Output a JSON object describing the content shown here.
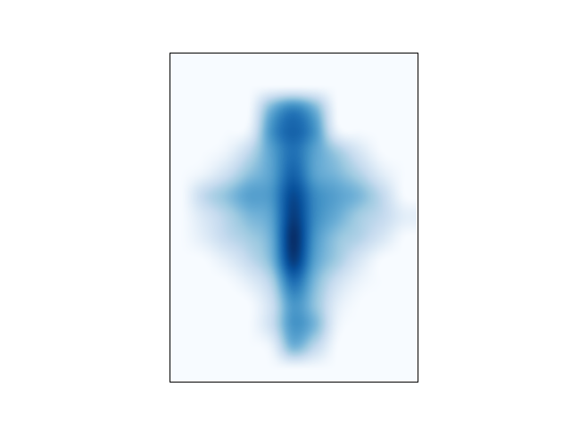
{
  "chart_data": {
    "type": "heatmap",
    "title": "",
    "xlabel": "",
    "ylabel": "",
    "axis_ticks_visible": false,
    "grid": false,
    "legend": "none",
    "colormap": "Blues",
    "colormap_stops": [
      "#f7fbff",
      "#deebf7",
      "#c6dbef",
      "#9ecae1",
      "#6baed6",
      "#4292c6",
      "#2171b5",
      "#08519c",
      "#08306b"
    ],
    "interpolation": "bicubic",
    "grid_shape": [
      15,
      11
    ],
    "values": [
      [
        0.0,
        0.0,
        0.0,
        0.0,
        0.0,
        0.0,
        0.0,
        0.0,
        0.0,
        0.0,
        0.0
      ],
      [
        0.0,
        0.0,
        0.0,
        0.0,
        0.0,
        0.0,
        0.0,
        0.0,
        0.0,
        0.0,
        0.0
      ],
      [
        0.0,
        0.0,
        0.0,
        0.0,
        0.45,
        0.65,
        0.45,
        0.0,
        0.0,
        0.0,
        0.0
      ],
      [
        0.0,
        0.0,
        0.0,
        0.05,
        0.6,
        0.8,
        0.6,
        0.05,
        0.0,
        0.0,
        0.0
      ],
      [
        0.0,
        0.0,
        0.05,
        0.25,
        0.55,
        0.75,
        0.55,
        0.35,
        0.15,
        0.0,
        0.0
      ],
      [
        0.0,
        0.05,
        0.2,
        0.4,
        0.55,
        0.8,
        0.55,
        0.45,
        0.3,
        0.1,
        0.0
      ],
      [
        0.0,
        0.25,
        0.4,
        0.55,
        0.6,
        0.9,
        0.65,
        0.55,
        0.45,
        0.25,
        0.0
      ],
      [
        0.0,
        0.15,
        0.3,
        0.45,
        0.55,
        0.95,
        0.65,
        0.5,
        0.35,
        0.25,
        0.1
      ],
      [
        0.0,
        0.1,
        0.25,
        0.35,
        0.5,
        1.0,
        0.6,
        0.4,
        0.3,
        0.15,
        0.0
      ],
      [
        0.0,
        0.0,
        0.1,
        0.25,
        0.45,
        0.95,
        0.55,
        0.35,
        0.15,
        0.0,
        0.0
      ],
      [
        0.0,
        0.0,
        0.0,
        0.1,
        0.3,
        0.75,
        0.45,
        0.2,
        0.05,
        0.0,
        0.0
      ],
      [
        0.0,
        0.0,
        0.0,
        0.0,
        0.2,
        0.6,
        0.4,
        0.1,
        0.0,
        0.0,
        0.0
      ],
      [
        0.0,
        0.0,
        0.0,
        0.0,
        0.2,
        0.6,
        0.45,
        0.05,
        0.0,
        0.0,
        0.0
      ],
      [
        0.0,
        0.0,
        0.0,
        0.0,
        0.05,
        0.45,
        0.25,
        0.0,
        0.0,
        0.0,
        0.0
      ],
      [
        0.0,
        0.0,
        0.0,
        0.0,
        0.0,
        0.0,
        0.0,
        0.0,
        0.0,
        0.0,
        0.0
      ]
    ]
  }
}
